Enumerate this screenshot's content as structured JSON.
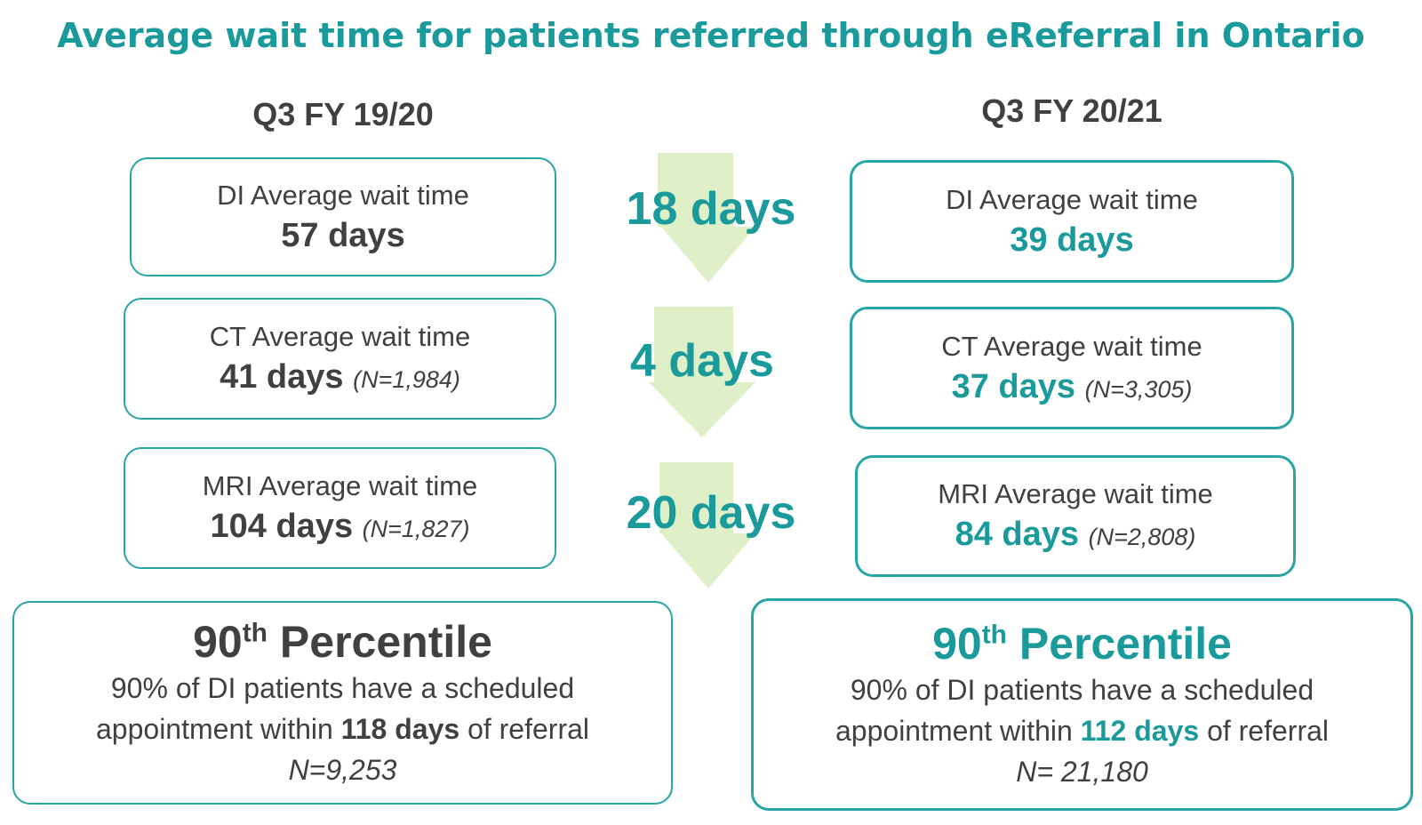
{
  "title": "Average wait time for patients referred through eReferral in Ontario",
  "columns": [
    {
      "heading": "Q3 FY 19/20",
      "boxes": [
        {
          "label": "DI Average wait time",
          "value": "57 days"
        },
        {
          "label": "CT Average wait time",
          "value": "41 days",
          "n": "(N=1,984)"
        },
        {
          "label": "MRI Average wait time",
          "value": "104 days",
          "n": "(N=1,827)"
        }
      ],
      "percentile": {
        "number": "90",
        "suffix": "th",
        "title": "Percentile",
        "line1": "90% of DI patients have a scheduled",
        "line2_pre": "appointment within",
        "line2_bold": "118 days",
        "line2_post": "of referral",
        "n": "N=9,253"
      }
    },
    {
      "heading": "Q3 FY 20/21",
      "boxes": [
        {
          "label": "DI Average wait time",
          "value": "39 days"
        },
        {
          "label": "CT Average wait time",
          "value": "37 days",
          "n": "(N=3,305)"
        },
        {
          "label": "MRI Average wait time",
          "value": "84 days",
          "n": "(N=2,808)"
        }
      ],
      "percentile": {
        "number": "90",
        "suffix": "th",
        "title": "Percentile",
        "line1": "90% of DI patients have a scheduled",
        "line2_pre": "appointment within",
        "line2_bold": "112 days",
        "line2_post": "of referral",
        "n": "N= 21,180"
      }
    }
  ],
  "differences": [
    "18 days",
    "4 days",
    "20 days"
  ]
}
